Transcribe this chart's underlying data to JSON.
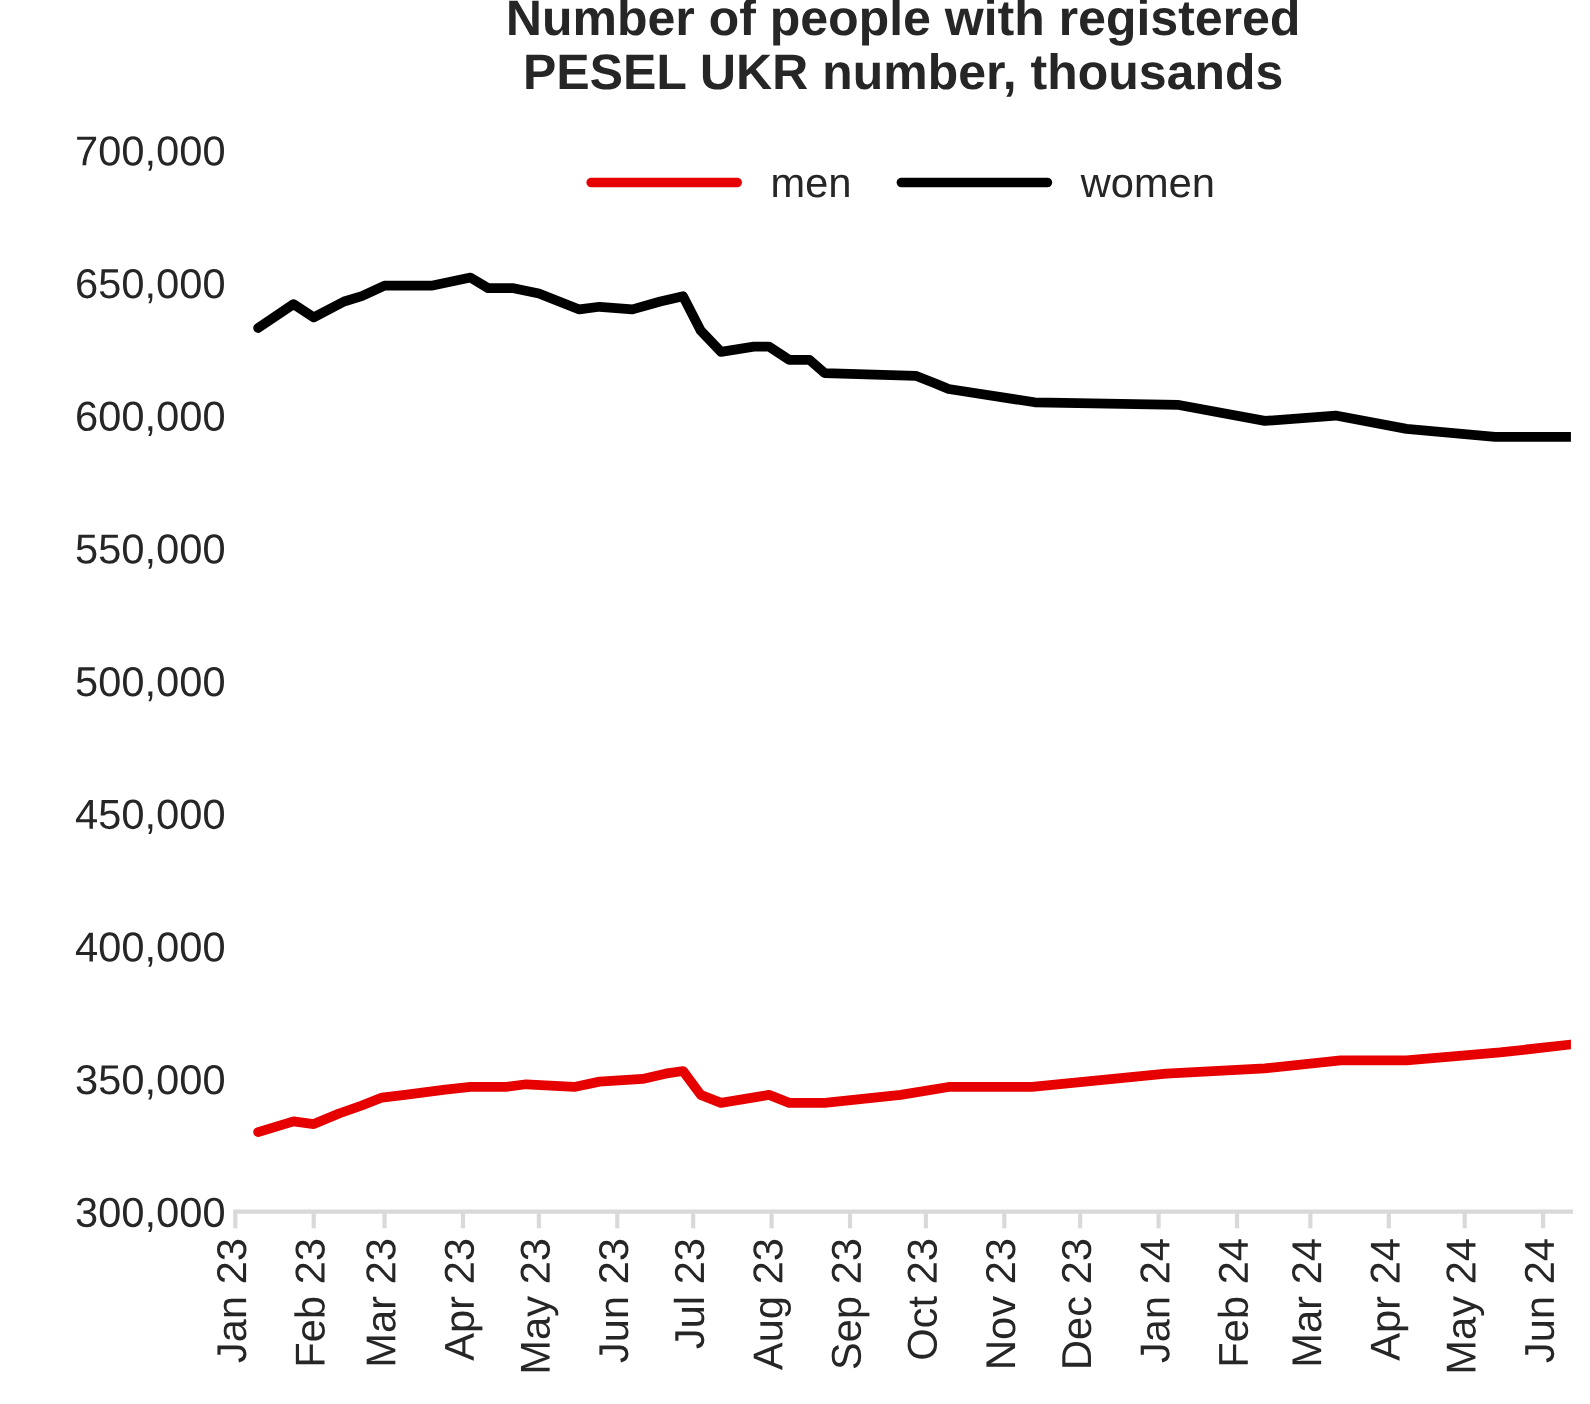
{
  "chart_data": {
    "type": "line",
    "title": "Number of people with registered\nPESEL UKR number, thousands",
    "series": [
      {
        "name": "men",
        "color": "#e60000",
        "x": [
          "2023-01-10",
          "2023-01-24",
          "2023-02-01",
          "2023-02-11",
          "2023-02-20",
          "2023-02-28",
          "2023-03-09",
          "2023-03-25",
          "2023-04-04",
          "2023-04-18",
          "2023-04-26",
          "2023-05-15",
          "2023-05-25",
          "2023-06-11",
          "2023-06-20",
          "2023-06-27",
          "2023-07-04",
          "2023-07-12",
          "2023-07-31",
          "2023-08-08",
          "2023-08-14",
          "2023-08-22",
          "2023-09-21",
          "2023-10-10",
          "2023-11-12",
          "2024-01-04",
          "2024-02-12",
          "2024-03-13",
          "2024-04-08",
          "2024-05-15",
          "2024-06-12"
        ],
        "values": [
          330000,
          334000,
          333000,
          337000,
          340000,
          343000,
          344000,
          346000,
          347000,
          347000,
          348000,
          347000,
          349000,
          350000,
          352000,
          353000,
          344000,
          341000,
          344000,
          341000,
          341000,
          341000,
          344000,
          347000,
          347000,
          352000,
          354000,
          357000,
          357000,
          360000,
          363000
        ]
      },
      {
        "name": "women",
        "color": "#000000",
        "x": [
          "2023-01-10",
          "2023-01-24",
          "2023-02-01",
          "2023-02-13",
          "2023-02-20",
          "2023-03-01",
          "2023-03-20",
          "2023-04-04",
          "2023-04-11",
          "2023-04-21",
          "2023-05-01",
          "2023-05-09",
          "2023-05-17",
          "2023-05-25",
          "2023-06-07",
          "2023-06-18",
          "2023-06-27",
          "2023-07-04",
          "2023-07-12",
          "2023-07-25",
          "2023-07-31",
          "2023-08-08",
          "2023-08-16",
          "2023-08-22",
          "2023-09-27",
          "2023-10-05",
          "2023-10-10",
          "2023-11-13",
          "2024-01-09",
          "2024-02-12",
          "2024-03-11",
          "2024-04-08",
          "2024-05-13",
          "2024-06-12"
        ],
        "values": [
          633000,
          642000,
          637000,
          643000,
          645000,
          649000,
          649000,
          652000,
          648000,
          648000,
          646000,
          643000,
          640000,
          641000,
          640000,
          643000,
          645000,
          632000,
          624000,
          626000,
          626000,
          621000,
          621000,
          616000,
          615000,
          612000,
          610000,
          605000,
          604000,
          598000,
          600000,
          595000,
          592000,
          592000
        ]
      }
    ],
    "ylim": [
      300000,
      700000
    ],
    "yticks": [
      {
        "value": 300000,
        "label": "300,000"
      },
      {
        "value": 350000,
        "label": "350,000"
      },
      {
        "value": 400000,
        "label": "400,000"
      },
      {
        "value": 450000,
        "label": "450,000"
      },
      {
        "value": 500000,
        "label": "500,000"
      },
      {
        "value": 550000,
        "label": "550,000"
      },
      {
        "value": 600000,
        "label": "600,000"
      },
      {
        "value": 650000,
        "label": "650,000"
      },
      {
        "value": 700000,
        "label": "700,000"
      }
    ],
    "xlim": [
      "2023-01-01",
      "2024-06-12"
    ],
    "xticks": [
      {
        "value": "2023-01-01",
        "label": "Jan 23"
      },
      {
        "value": "2023-02-01",
        "label": "Feb 23"
      },
      {
        "value": "2023-03-01",
        "label": "Mar 23"
      },
      {
        "value": "2023-04-01",
        "label": "Apr 23"
      },
      {
        "value": "2023-05-01",
        "label": "May 23"
      },
      {
        "value": "2023-06-01",
        "label": "Jun 23"
      },
      {
        "value": "2023-07-01",
        "label": "Jul 23"
      },
      {
        "value": "2023-08-01",
        "label": "Aug 23"
      },
      {
        "value": "2023-09-01",
        "label": "Sep 23"
      },
      {
        "value": "2023-10-01",
        "label": "Oct 23"
      },
      {
        "value": "2023-11-01",
        "label": "Nov 23"
      },
      {
        "value": "2023-12-01",
        "label": "Dec 23"
      },
      {
        "value": "2024-01-01",
        "label": "Jan 24"
      },
      {
        "value": "2024-02-01",
        "label": "Feb 24"
      },
      {
        "value": "2024-03-01",
        "label": "Mar 24"
      },
      {
        "value": "2024-04-01",
        "label": "Apr 24"
      },
      {
        "value": "2024-05-01",
        "label": "May 24"
      },
      {
        "value": "2024-06-01",
        "label": "Jun 24"
      }
    ],
    "legend": "top",
    "grid": false,
    "line_style": "solid",
    "marker": "none"
  }
}
